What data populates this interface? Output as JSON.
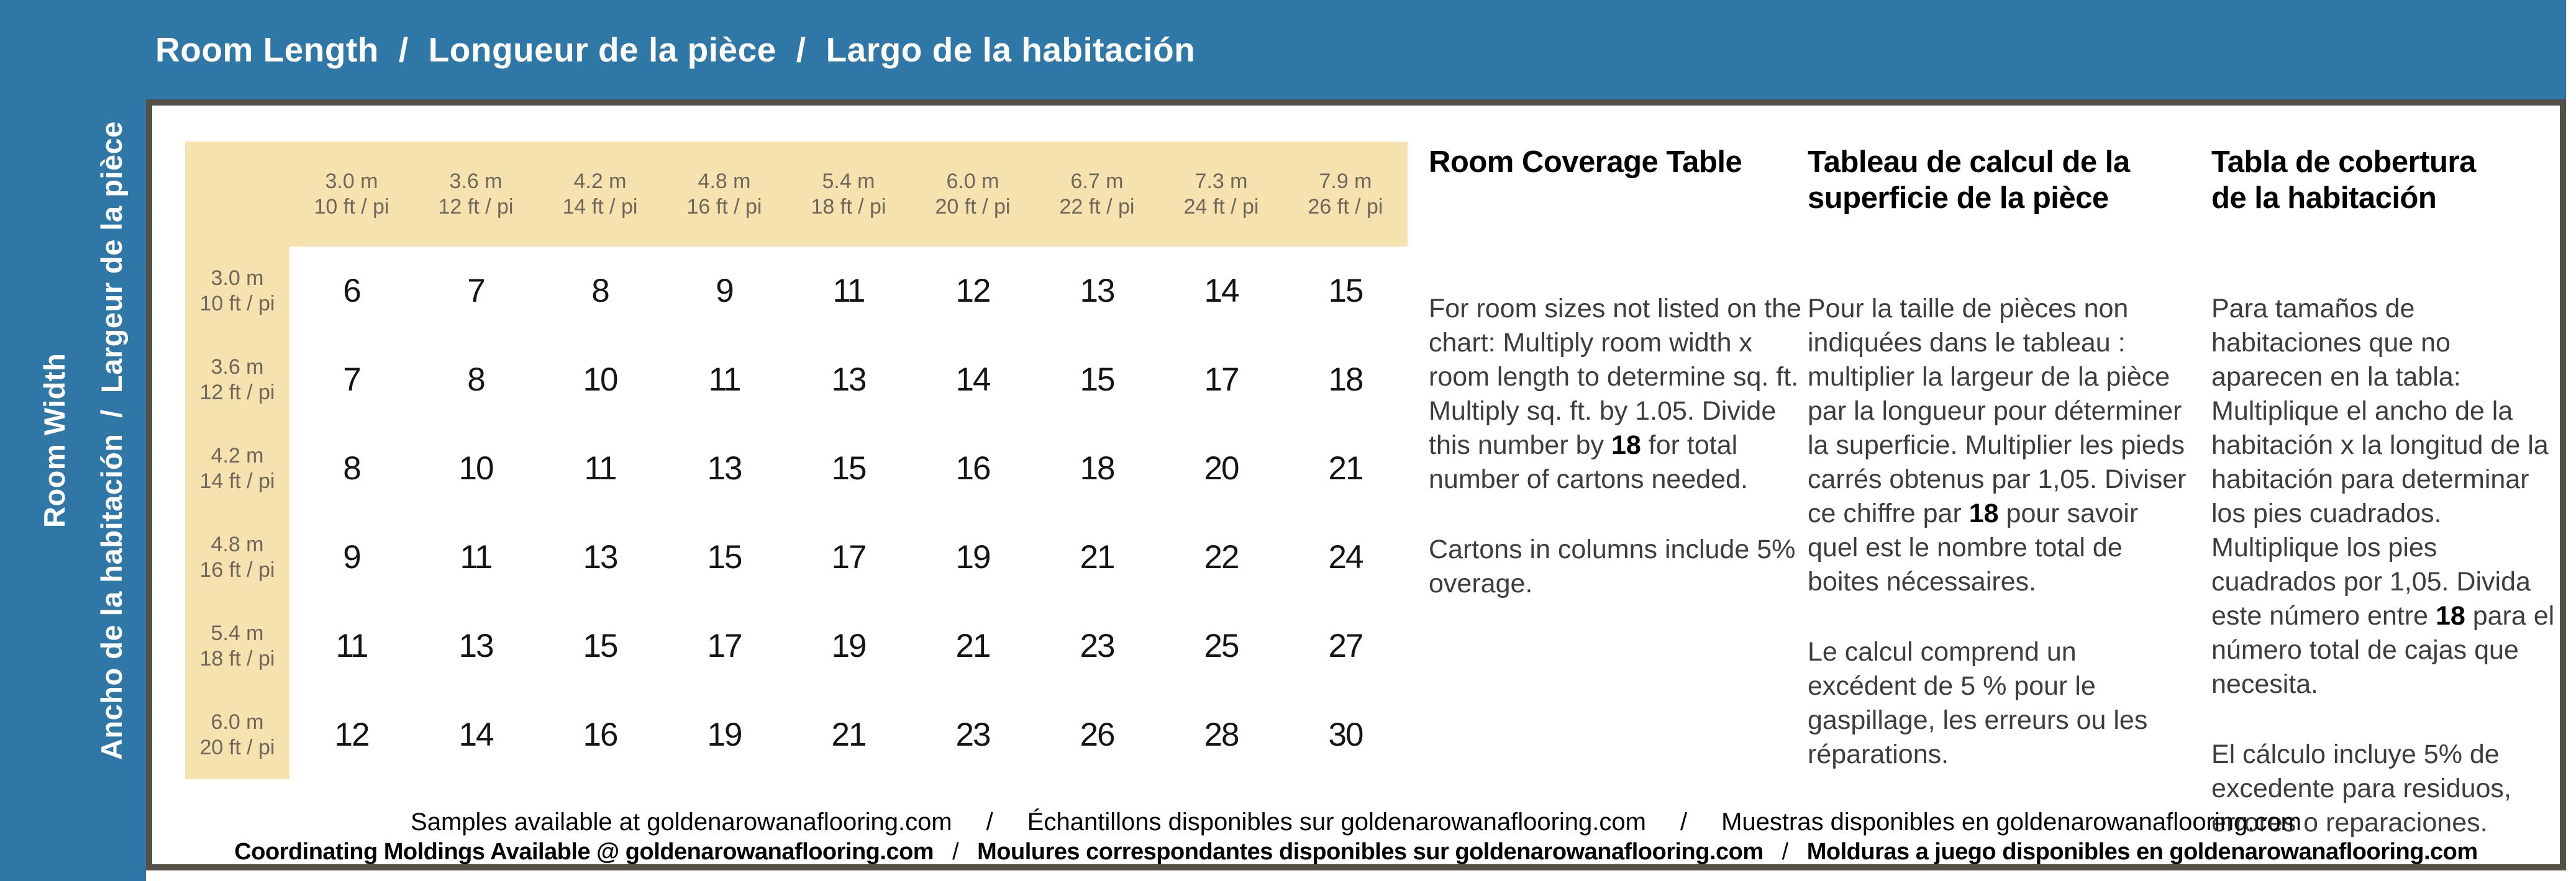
{
  "colors": {
    "accent_blue": "#2F77A6",
    "band_cream": "#F5E2AE",
    "panel_border": "#554F49",
    "header_label_brown": "#6F675C",
    "body_text_gray": "#3D3D3D"
  },
  "header": {
    "en": "Room Length",
    "fr": "Longueur de la pièce",
    "es": "Largo de la habitación",
    "sep": "/"
  },
  "side": {
    "en": "Room Width",
    "fr": "Largeur de la pièce",
    "es": "Ancho de la habitación",
    "sep": "/"
  },
  "table": {
    "col_headers": [
      {
        "metric": "3.0 m",
        "imperial": "10 ft / pi"
      },
      {
        "metric": "3.6 m",
        "imperial": "12 ft / pi"
      },
      {
        "metric": "4.2 m",
        "imperial": "14 ft / pi"
      },
      {
        "metric": "4.8 m",
        "imperial": "16 ft / pi"
      },
      {
        "metric": "5.4 m",
        "imperial": "18 ft / pi"
      },
      {
        "metric": "6.0 m",
        "imperial": "20 ft / pi"
      },
      {
        "metric": "6.7 m",
        "imperial": "22 ft / pi"
      },
      {
        "metric": "7.3 m",
        "imperial": "24 ft / pi"
      },
      {
        "metric": "7.9 m",
        "imperial": "26 ft / pi"
      }
    ],
    "rows": [
      {
        "metric": "3.0 m",
        "imperial": "10 ft / pi",
        "values": [
          "6",
          "7",
          "8",
          "9",
          "11",
          "12",
          "13",
          "14",
          "15"
        ]
      },
      {
        "metric": "3.6 m",
        "imperial": "12 ft / pi",
        "values": [
          "7",
          "8",
          "10",
          "11",
          "13",
          "14",
          "15",
          "17",
          "18"
        ]
      },
      {
        "metric": "4.2 m",
        "imperial": "14 ft / pi",
        "values": [
          "8",
          "10",
          "11",
          "13",
          "15",
          "16",
          "18",
          "20",
          "21"
        ]
      },
      {
        "metric": "4.8 m",
        "imperial": "16 ft / pi",
        "values": [
          "9",
          "11",
          "13",
          "15",
          "17",
          "19",
          "21",
          "22",
          "24"
        ]
      },
      {
        "metric": "5.4 m",
        "imperial": "18 ft / pi",
        "values": [
          "11",
          "13",
          "15",
          "17",
          "19",
          "21",
          "23",
          "25",
          "27"
        ]
      },
      {
        "metric": "6.0 m",
        "imperial": "20 ft / pi",
        "values": [
          "12",
          "14",
          "16",
          "19",
          "21",
          "23",
          "26",
          "28",
          "30"
        ]
      }
    ]
  },
  "info": {
    "en": {
      "title": "Room Coverage Table",
      "p1_pre": "For room sizes not listed on the chart: Multiply room width x room length to determine sq. ft. Multiply sq. ft. by 1.05. Divide this number by ",
      "p1_value": "18",
      "p1_post": " for total number of cartons needed.",
      "p2": "Cartons in columns include 5% overage."
    },
    "fr": {
      "title": "Tableau de calcul de la superficie de la pièce",
      "p1_pre": "Pour la taille de pièces non indiquées dans le tableau :  multiplier la largeur de la pièce par la longueur pour déterminer la superficie. Multiplier les pieds carrés obtenus par 1,05. Diviser ce chiffre par ",
      "p1_value": "18",
      "p1_post": " pour savoir quel est le nombre total de boites nécessaires.",
      "p2": "Le calcul comprend un excédent de 5 % pour le gaspillage, les erreurs ou les réparations."
    },
    "es": {
      "title": "Tabla de cobertura de la habitación",
      "p1_pre": "Para tamaños de habitaciones que no aparecen en la tabla: Multiplique el ancho de la habitación x la longitud de la habitación para determinar los pies cuadrados. Multiplique los pies cuadrados por 1,05. Divida este número entre ",
      "p1_value": "18",
      "p1_post": " para el número total de cajas que necesita.",
      "p2": "El cálculo incluye 5% de excedente para residuos, errores o reparaciones."
    }
  },
  "footer": {
    "sep": "/",
    "line1": [
      "Samples available at goldenarowanaflooring.com",
      "Échantillons disponibles sur goldenarowanaflooring.com",
      "Muestras disponibles en goldenarowanaflooring.com"
    ],
    "line2": [
      "Coordinating Moldings Available @ goldenarowanaflooring.com",
      "Moulures correspondantes disponibles sur goldenarowanaflooring.com",
      "Molduras a juego disponibles en goldenarowanaflooring.com"
    ]
  }
}
